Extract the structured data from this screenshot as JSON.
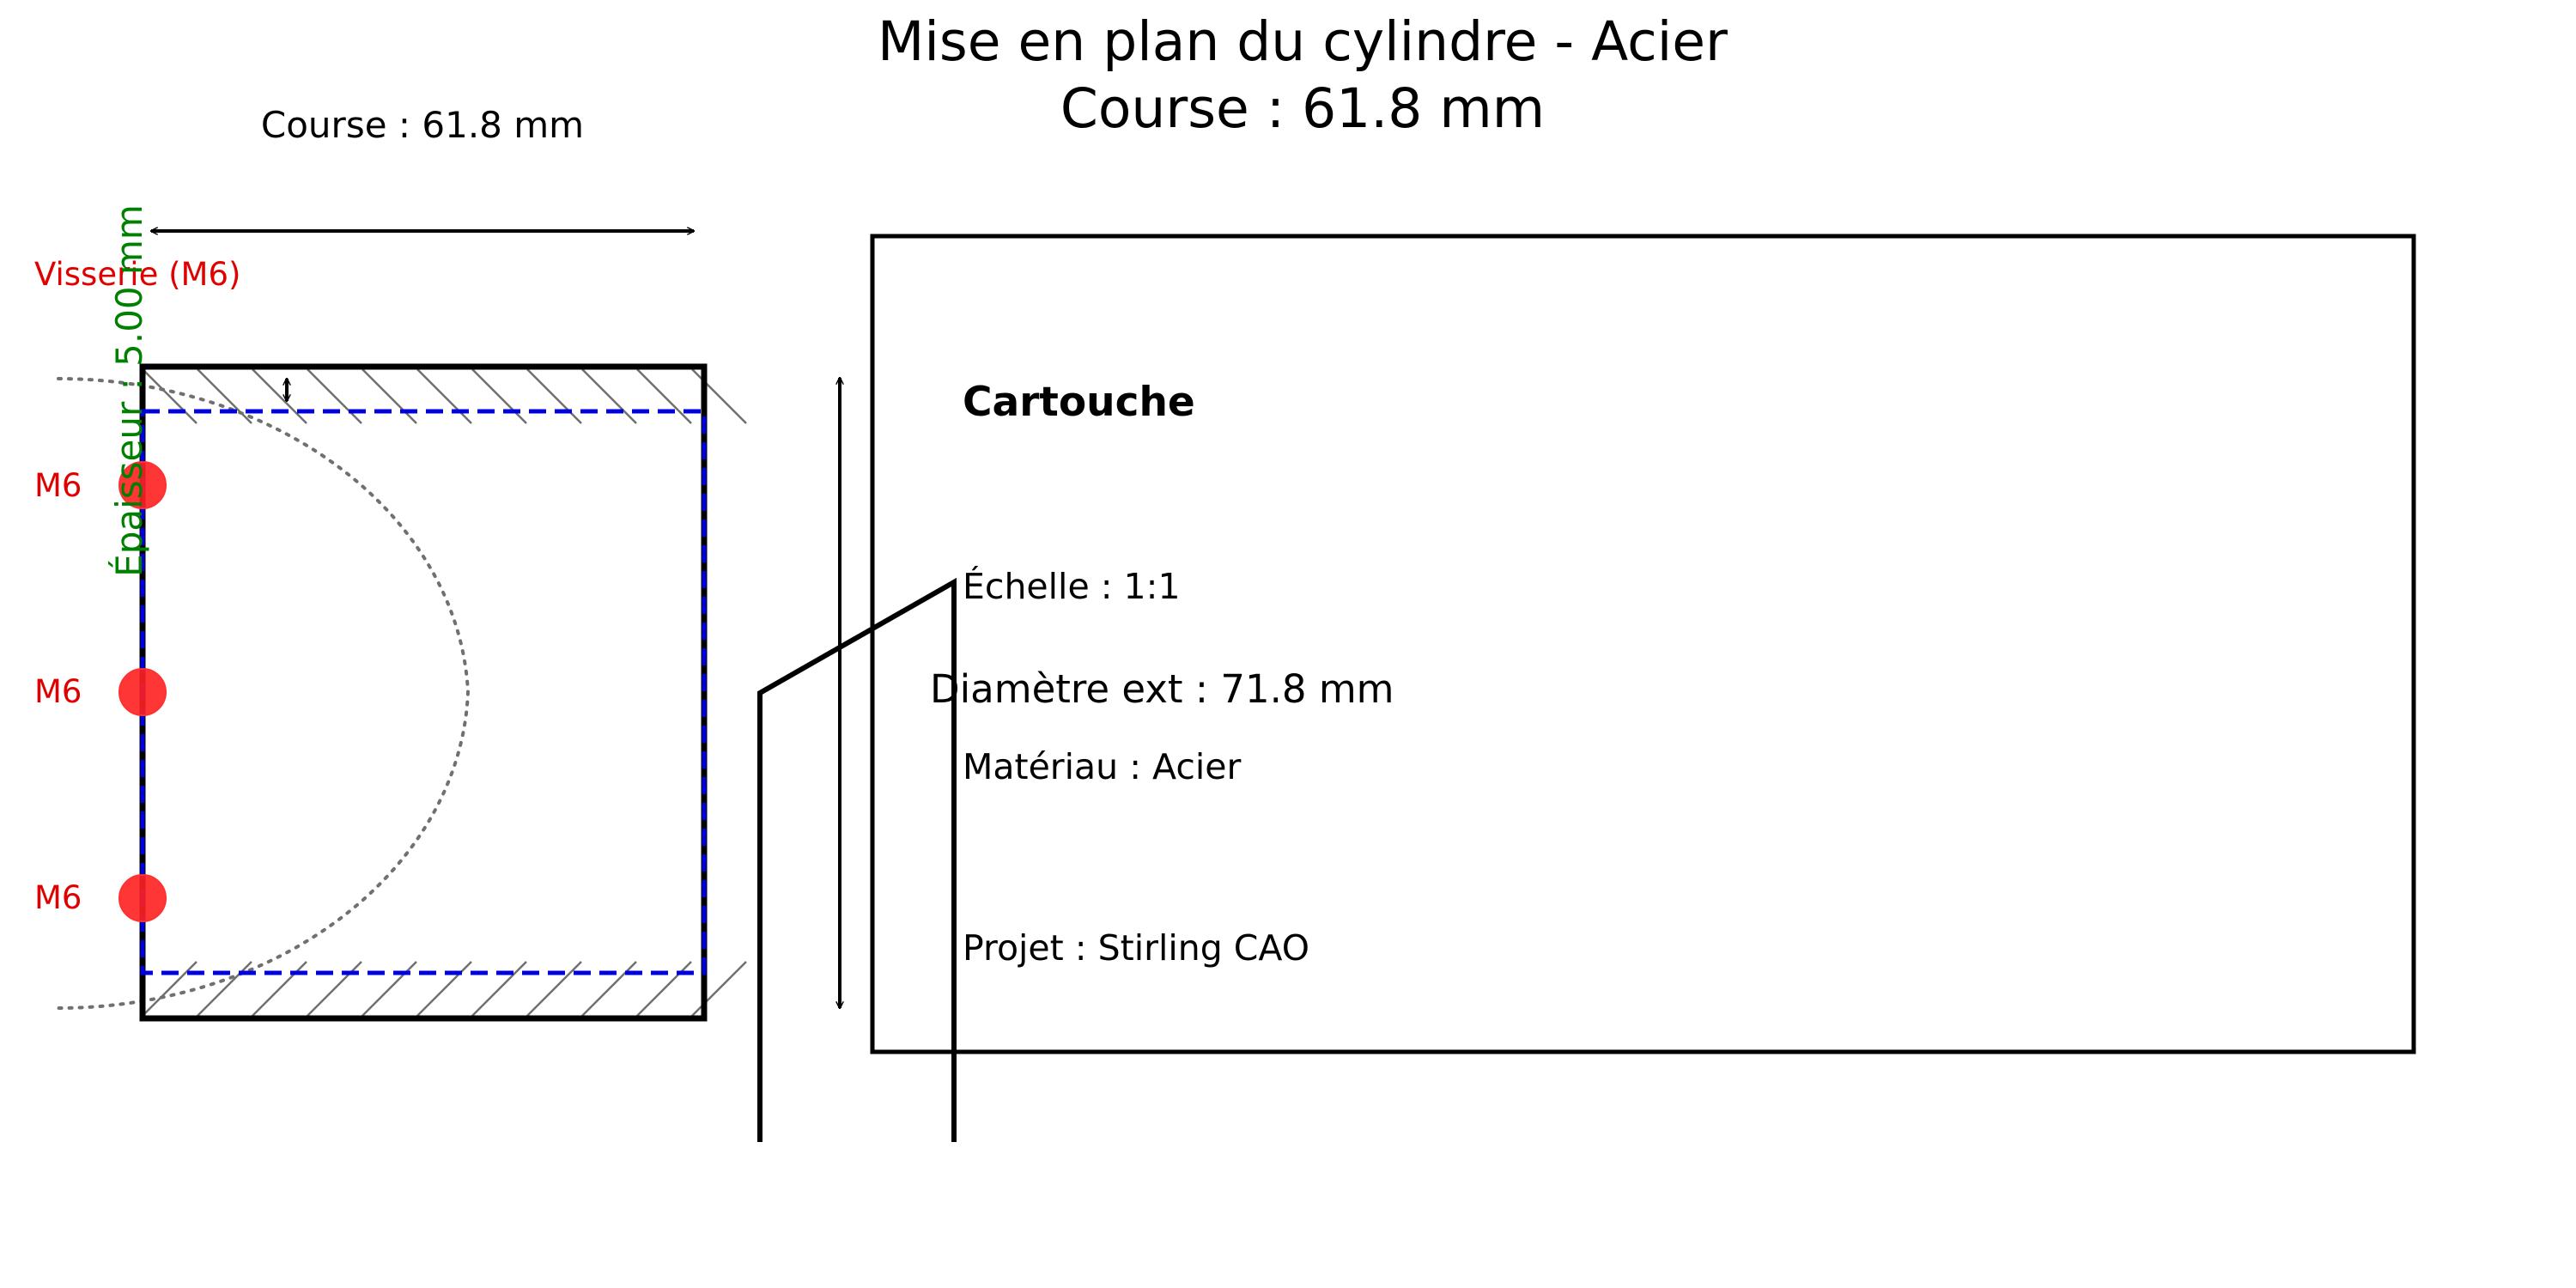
{
  "drawing": {
    "title_line1": "Mise en plan du cylindre - Acier",
    "title_line2": "Course : 61.8 mm",
    "stroke_dimension_label": "Course : 61.8 mm",
    "thickness_label": "Épaisseur : 5.00 mm",
    "screws_label": "Visserie (M6)",
    "screw_labels": [
      "M6",
      "M6",
      "M6"
    ],
    "diameter_label": "Diamètre ext : 71.8 mm",
    "colors": {
      "outline": "#000000",
      "inner_wall": "#0000dd",
      "screw": "#ff2020",
      "screw_text": "#e00000",
      "thickness_text": "#008000",
      "hatch": "#707070",
      "arc": "#707070"
    }
  },
  "title_block": {
    "heading": "Cartouche",
    "scale": "Échelle : 1:1",
    "material": "Matériau : Acier",
    "project": "Projet : Stirling CAO"
  }
}
